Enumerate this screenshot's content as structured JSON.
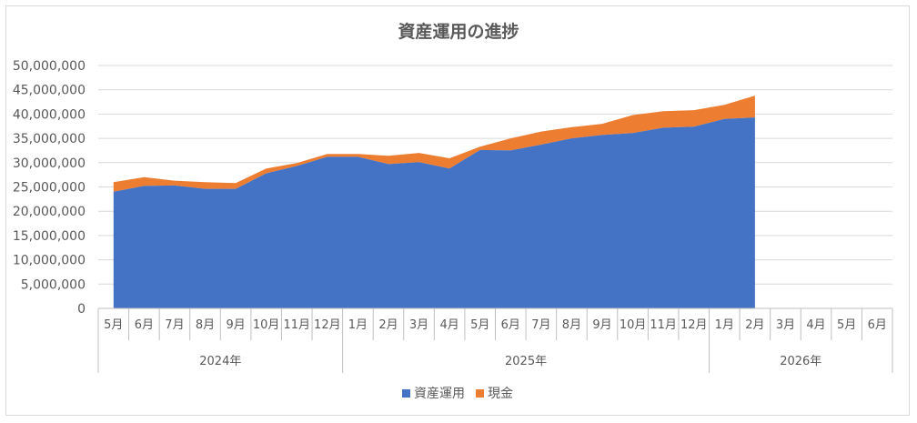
{
  "chart_data": {
    "type": "area",
    "stacked": true,
    "title": "資産運用の進捗",
    "xlabel": "",
    "ylabel": "",
    "ylim": [
      0,
      50000000
    ],
    "yticks": [
      "0",
      "5,000,000",
      "10,000,000",
      "15,000,000",
      "20,000,000",
      "25,000,000",
      "30,000,000",
      "35,000,000",
      "40,000,000",
      "45,000,000",
      "50,000,000"
    ],
    "grid": true,
    "legend_position": "bottom",
    "categories": [
      "5月",
      "6月",
      "7月",
      "8月",
      "9月",
      "10月",
      "11月",
      "12月",
      "1月",
      "2月",
      "3月",
      "4月",
      "5月",
      "6月",
      "7月",
      "8月",
      "9月",
      "10月",
      "11月",
      "12月",
      "1月",
      "2月",
      "3月",
      "4月",
      "5月",
      "6月"
    ],
    "year_groups": [
      {
        "label": "2024年",
        "start": 0,
        "end": 7
      },
      {
        "label": "2025年",
        "start": 8,
        "end": 19
      },
      {
        "label": "2026年",
        "start": 20,
        "end": 25
      }
    ],
    "series": [
      {
        "name": "資産運用",
        "color": "#4472c4",
        "values": [
          24000000,
          25200000,
          25300000,
          24600000,
          24600000,
          27800000,
          29300000,
          31200000,
          31200000,
          29700000,
          30100000,
          28800000,
          32600000,
          32500000,
          33700000,
          35000000,
          35700000,
          36100000,
          37200000,
          37400000,
          39000000,
          39300000,
          null,
          null,
          null,
          null
        ]
      },
      {
        "name": "現金",
        "color": "#ed7d31",
        "values": [
          2000000,
          1800000,
          1000000,
          1400000,
          1200000,
          1000000,
          600000,
          600000,
          600000,
          1700000,
          1900000,
          2100000,
          700000,
          2500000,
          2700000,
          2300000,
          2300000,
          3700000,
          3400000,
          3400000,
          2900000,
          4500000,
          null,
          null,
          null,
          null
        ]
      }
    ]
  }
}
